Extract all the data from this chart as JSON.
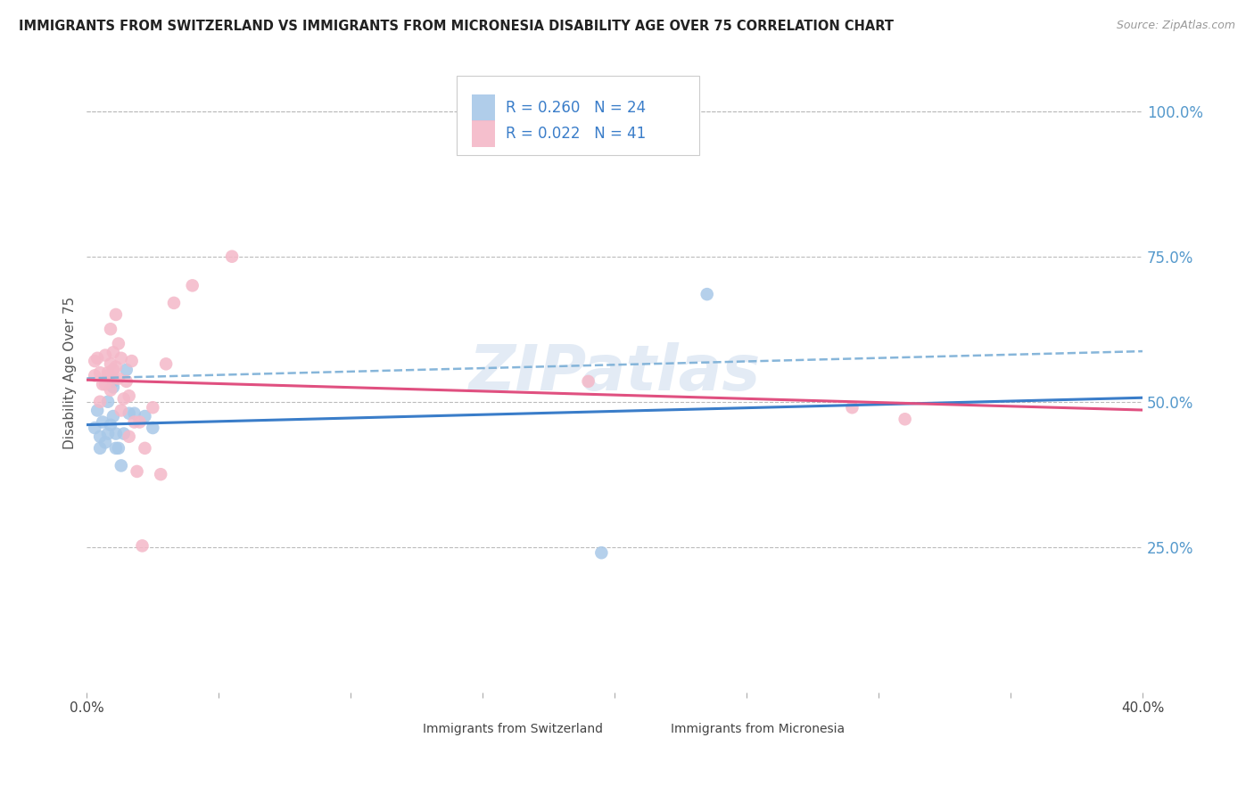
{
  "title": "IMMIGRANTS FROM SWITZERLAND VS IMMIGRANTS FROM MICRONESIA DISABILITY AGE OVER 75 CORRELATION CHART",
  "source": "Source: ZipAtlas.com",
  "ylabel": "Disability Age Over 75",
  "xlim": [
    0.0,
    0.4
  ],
  "ylim": [
    0.0,
    1.1
  ],
  "xticks": [
    0.0,
    0.05,
    0.1,
    0.15,
    0.2,
    0.25,
    0.3,
    0.35,
    0.4
  ],
  "yticks_right": [
    0.25,
    0.5,
    0.75,
    1.0
  ],
  "yticklabels_right": [
    "25.0%",
    "50.0%",
    "75.0%",
    "100.0%"
  ],
  "legend_r1": "R = 0.260",
  "legend_n1": "N = 24",
  "legend_r2": "R = 0.022",
  "legend_n2": "N = 41",
  "color_blue": "#a8c8e8",
  "color_pink": "#f4b8c8",
  "color_blue_line": "#3a7dc9",
  "color_blue_dash": "#7aaed6",
  "color_pink_line": "#e05080",
  "color_legend_text": "#3a7dc9",
  "color_right_axis": "#5599cc",
  "watermark": "ZIPatlas",
  "scatter_blue_x": [
    0.003,
    0.004,
    0.005,
    0.005,
    0.006,
    0.007,
    0.008,
    0.008,
    0.009,
    0.01,
    0.01,
    0.01,
    0.011,
    0.011,
    0.012,
    0.013,
    0.014,
    0.015,
    0.016,
    0.018,
    0.022,
    0.025,
    0.195,
    0.235
  ],
  "scatter_blue_y": [
    0.455,
    0.485,
    0.42,
    0.44,
    0.465,
    0.43,
    0.445,
    0.5,
    0.46,
    0.475,
    0.525,
    0.535,
    0.42,
    0.445,
    0.42,
    0.39,
    0.445,
    0.555,
    0.48,
    0.48,
    0.475,
    0.455,
    0.24,
    0.685
  ],
  "scatter_pink_x": [
    0.003,
    0.003,
    0.004,
    0.005,
    0.005,
    0.006,
    0.007,
    0.007,
    0.008,
    0.008,
    0.009,
    0.009,
    0.009,
    0.01,
    0.01,
    0.01,
    0.011,
    0.011,
    0.012,
    0.012,
    0.013,
    0.013,
    0.014,
    0.015,
    0.016,
    0.016,
    0.017,
    0.018,
    0.019,
    0.02,
    0.021,
    0.022,
    0.025,
    0.028,
    0.03,
    0.033,
    0.04,
    0.055,
    0.19,
    0.29,
    0.31
  ],
  "scatter_pink_y": [
    0.545,
    0.57,
    0.575,
    0.5,
    0.55,
    0.53,
    0.53,
    0.58,
    0.545,
    0.55,
    0.52,
    0.565,
    0.625,
    0.54,
    0.555,
    0.585,
    0.56,
    0.65,
    0.54,
    0.6,
    0.575,
    0.485,
    0.505,
    0.535,
    0.44,
    0.51,
    0.57,
    0.465,
    0.38,
    0.465,
    0.252,
    0.42,
    0.49,
    0.375,
    0.565,
    0.67,
    0.7,
    0.75,
    0.535,
    0.49,
    0.47
  ],
  "grid_color": "#bbbbbb",
  "background_color": "#ffffff",
  "bottom_legend_label1": "Immigrants from Switzerland",
  "bottom_legend_label2": "Immigrants from Micronesia"
}
